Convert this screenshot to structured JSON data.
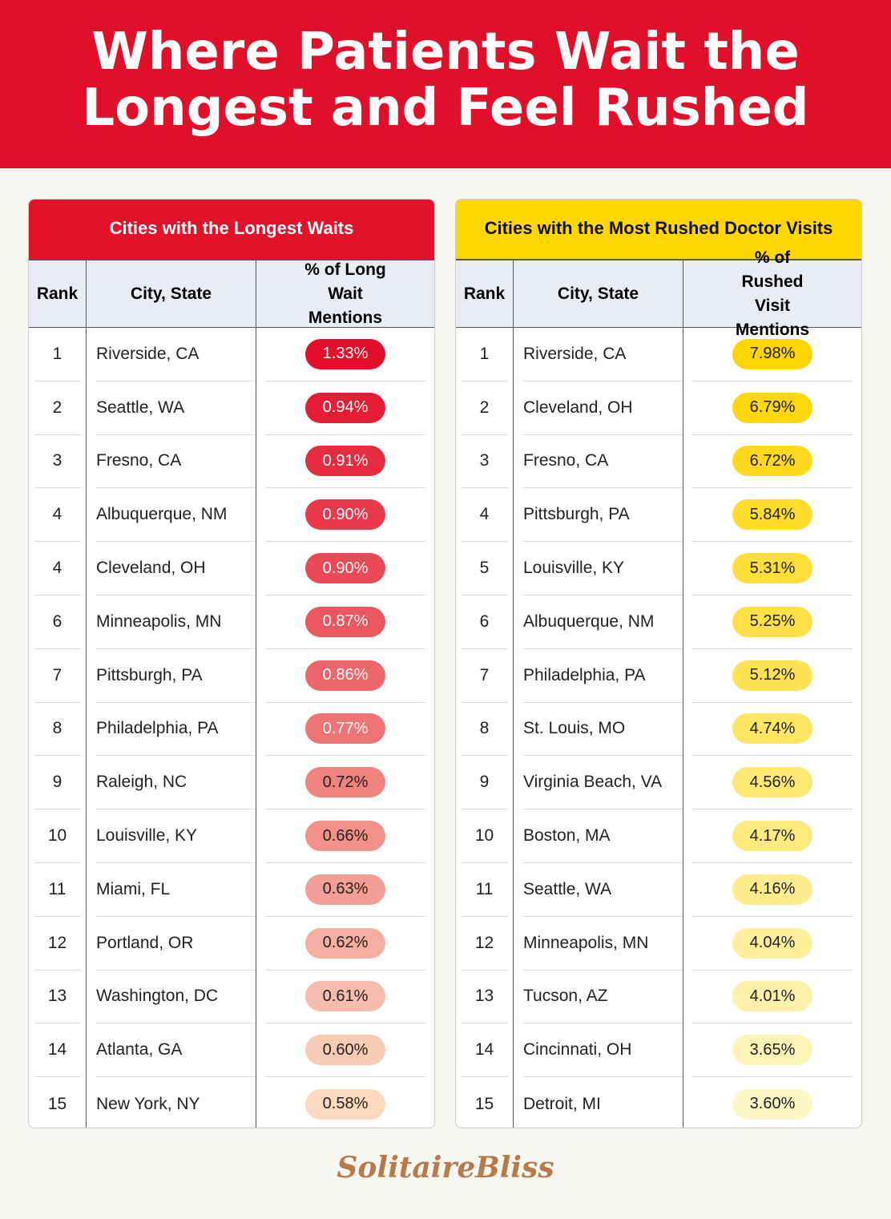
{
  "header": {
    "title_lines": [
      "Where Patients Wait the",
      "Longest and Feel Rushed"
    ]
  },
  "tables": [
    {
      "title": "Cities with the Longest Waits",
      "title_bg": "#e4112b",
      "title_color": "#ffffff",
      "pill_colors": [
        "#e30f2a",
        "#fad9c0"
      ],
      "columns": [
        "Rank",
        "City, State",
        "% of Long Wait Mentions"
      ],
      "rows": [
        [
          "1",
          "Riverside, CA",
          "1.33%"
        ],
        [
          "2",
          "Seattle, WA",
          "0.94%"
        ],
        [
          "3",
          "Fresno, CA",
          "0.91%"
        ],
        [
          "4",
          "Albuquerque, NM",
          "0.90%"
        ],
        [
          "4",
          "Cleveland, OH",
          "0.90%"
        ],
        [
          "6",
          "Minneapolis, MN",
          "0.87%"
        ],
        [
          "7",
          "Pittsburgh, PA",
          "0.86%"
        ],
        [
          "8",
          "Philadelphia, PA",
          "0.77%"
        ],
        [
          "9",
          "Raleigh, NC",
          "0.72%"
        ],
        [
          "10",
          "Louisville, KY",
          "0.66%"
        ],
        [
          "11",
          "Miami, FL",
          "0.63%"
        ],
        [
          "12",
          "Portland, OR",
          "0.62%"
        ],
        [
          "13",
          "Washington, DC",
          "0.61%"
        ],
        [
          "14",
          "Atlanta, GA",
          "0.60%"
        ],
        [
          "15",
          "New York, NY",
          "0.58%"
        ]
      ]
    },
    {
      "title": "Cities with the Most Rushed Doctor Visits",
      "title_bg": "#ffd700",
      "title_color": "#111111",
      "pill_colors": [
        "#ffd500",
        "#fff6c6"
      ],
      "columns": [
        "Rank",
        "City, State",
        "% of Rushed Visit Mentions"
      ],
      "rows": [
        [
          "1",
          "Riverside, CA",
          "7.98%"
        ],
        [
          "2",
          "Cleveland, OH",
          "6.79%"
        ],
        [
          "3",
          "Fresno, CA",
          "6.72%"
        ],
        [
          "4",
          "Pittsburgh, PA",
          "5.84%"
        ],
        [
          "5",
          "Louisville, KY",
          "5.31%"
        ],
        [
          "6",
          "Albuquerque, NM",
          "5.25%"
        ],
        [
          "7",
          "Philadelphia, PA",
          "5.12%"
        ],
        [
          "8",
          "St. Louis, MO",
          "4.74%"
        ],
        [
          "9",
          "Virginia Beach, VA",
          "4.56%"
        ],
        [
          "10",
          "Boston, MA",
          "4.17%"
        ],
        [
          "11",
          "Seattle, WA",
          "4.16%"
        ],
        [
          "12",
          "Minneapolis, MN",
          "4.04%"
        ],
        [
          "13",
          "Tucson, AZ",
          "4.01%"
        ],
        [
          "14",
          "Cincinnati, OH",
          "3.65%"
        ],
        [
          "15",
          "Detroit, MI",
          "3.60%"
        ]
      ]
    }
  ],
  "footer": {
    "logo": "SolitaireBliss"
  }
}
